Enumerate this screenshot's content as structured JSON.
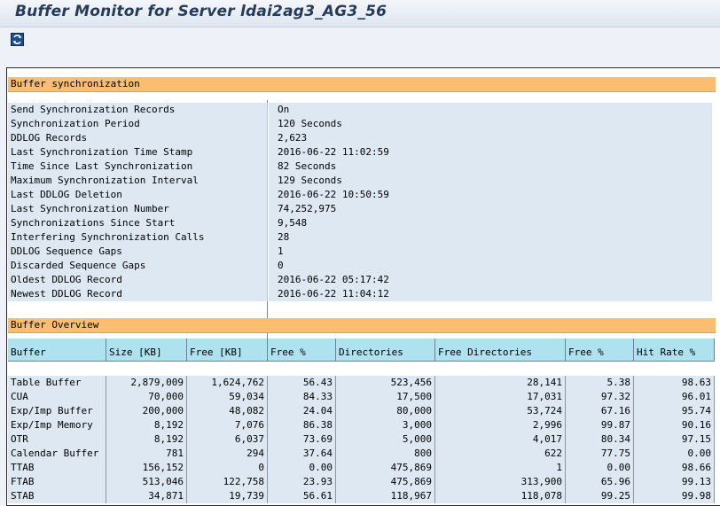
{
  "window": {
    "title": "Buffer Monitor for Server ldai2ag3_AG3_56"
  },
  "toolbar": {
    "refresh_icon": "refresh-icon"
  },
  "sync": {
    "header": "Buffer synchronization",
    "rows": [
      {
        "key": "Send Synchronization Records",
        "value": "On"
      },
      {
        "key": "Synchronization Period",
        "value": "120 Seconds"
      },
      {
        "key": "DDLOG Records",
        "value": "2,623"
      },
      {
        "key": "Last Synchronization Time Stamp",
        "value": "2016-06-22 11:02:59"
      },
      {
        "key": "Time Since Last Synchronization",
        "value": "82 Seconds"
      },
      {
        "key": "Maximum Synchronization Interval",
        "value": "129 Seconds"
      },
      {
        "key": "Last DDLOG Deletion",
        "value": "2016-06-22 10:50:59"
      },
      {
        "key": "Last Synchronization Number",
        "value": "74,252,975"
      },
      {
        "key": "Synchronizations Since Start",
        "value": "9,548"
      },
      {
        "key": "Interfering Synchronization Calls",
        "value": "28"
      },
      {
        "key": "DDLOG Sequence Gaps",
        "value": "1"
      },
      {
        "key": "Discarded Sequence Gaps",
        "value": "0"
      },
      {
        "key": "Oldest DDLOG Record",
        "value": "2016-06-22 05:17:42"
      },
      {
        "key": "Newest DDLOG Record",
        "value": "2016-06-22 11:04:12"
      }
    ]
  },
  "overview": {
    "header": "Buffer Overview",
    "columns": [
      "Buffer",
      "Size [KB]",
      "Free [KB]",
      "Free %",
      "Directories",
      "Free Directories",
      "Free %",
      "Hit Rate %"
    ],
    "rows": [
      [
        "Table Buffer",
        "2,879,009",
        "1,624,762",
        "56.43",
        "523,456",
        "28,141",
        "5.38",
        "98.63"
      ],
      [
        "CUA",
        "70,000",
        "59,034",
        "84.33",
        "17,500",
        "17,031",
        "97.32",
        "96.01"
      ],
      [
        "Exp/Imp Buffer",
        "200,000",
        "48,082",
        "24.04",
        "80,000",
        "53,724",
        "67.16",
        "95.74"
      ],
      [
        "Exp/Imp Memory",
        "8,192",
        "7,076",
        "86.38",
        "3,000",
        "2,996",
        "99.87",
        "90.16"
      ],
      [
        "OTR",
        "8,192",
        "6,037",
        "73.69",
        "5,000",
        "4,017",
        "80.34",
        "97.15"
      ],
      [
        "Calendar Buffer",
        "781",
        "294",
        "37.64",
        "800",
        "622",
        "77.75",
        "0.00"
      ],
      [
        "TTAB",
        "156,152",
        "0",
        "0.00",
        "475,869",
        "1",
        "0.00",
        "98.66"
      ],
      [
        "FTAB",
        "513,046",
        "122,758",
        "23.93",
        "475,869",
        "313,900",
        "65.96",
        "99.13"
      ],
      [
        "STAB",
        "34,871",
        "19,739",
        "56.61",
        "118,967",
        "118,078",
        "99.25",
        "99.98"
      ]
    ]
  }
}
